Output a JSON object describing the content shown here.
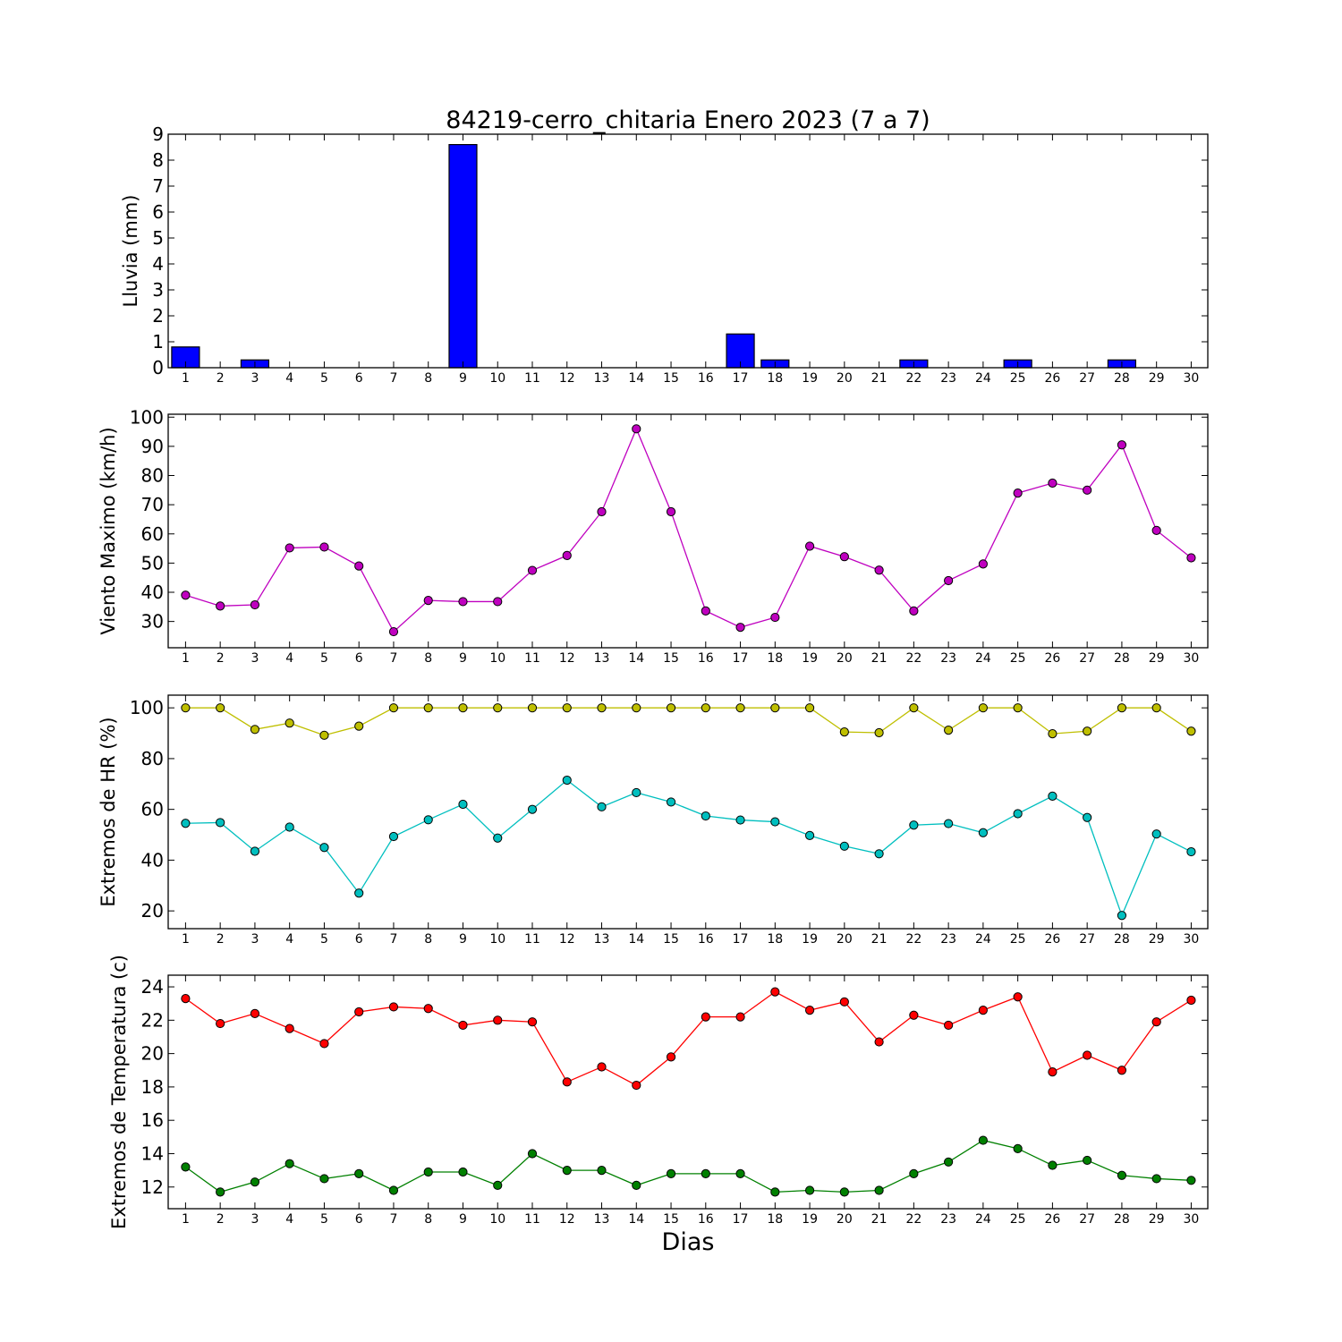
{
  "chart_data": [
    {
      "type": "bar",
      "title": "84219-cerro_chitaria Enero 2023  (7 a 7)",
      "ylabel": "Lluvia (mm)",
      "xlabel": "",
      "categories": [
        "1",
        "2",
        "3",
        "4",
        "5",
        "6",
        "7",
        "8",
        "9",
        "10",
        "11",
        "12",
        "13",
        "14",
        "15",
        "16",
        "17",
        "18",
        "19",
        "20",
        "21",
        "22",
        "23",
        "24",
        "25",
        "26",
        "27",
        "28",
        "29",
        "30"
      ],
      "values": [
        0.8,
        0,
        0.3,
        0,
        0,
        0,
        0,
        0,
        8.6,
        0,
        0,
        0,
        0,
        0,
        0,
        0,
        1.3,
        0.3,
        0,
        0,
        0,
        0.3,
        0,
        0,
        0.3,
        0,
        0,
        0.3,
        0,
        0
      ],
      "ylim": [
        0,
        9
      ],
      "yticks": [
        0,
        1,
        2,
        3,
        4,
        5,
        6,
        7,
        8,
        9
      ],
      "color": "#0000ff",
      "grid": false
    },
    {
      "type": "line",
      "title": "",
      "ylabel": "Viento Maximo (km/h)",
      "xlabel": "",
      "categories": [
        "1",
        "2",
        "3",
        "4",
        "5",
        "6",
        "7",
        "8",
        "9",
        "10",
        "11",
        "12",
        "13",
        "14",
        "15",
        "16",
        "17",
        "18",
        "19",
        "20",
        "21",
        "22",
        "23",
        "24",
        "25",
        "26",
        "27",
        "28",
        "29",
        "30"
      ],
      "series": [
        {
          "values": [
            39,
            35.3,
            35.7,
            55.2,
            55.5,
            49,
            26.5,
            37.2,
            36.8,
            36.8,
            47.5,
            52.6,
            67.6,
            96,
            67.6,
            33.6,
            28,
            31.4,
            55.8,
            52.2,
            47.6,
            33.6,
            44,
            49.7,
            74,
            77.4,
            75,
            90.5,
            61.2,
            51.8
          ],
          "color": "#bf00bf"
        }
      ],
      "ylim": [
        21,
        101
      ],
      "yticks": [
        30,
        40,
        50,
        60,
        70,
        80,
        90,
        100
      ],
      "grid": false
    },
    {
      "type": "line",
      "title": "",
      "ylabel": "Extremos de HR (%)",
      "xlabel": "",
      "categories": [
        "1",
        "2",
        "3",
        "4",
        "5",
        "6",
        "7",
        "8",
        "9",
        "10",
        "11",
        "12",
        "13",
        "14",
        "15",
        "16",
        "17",
        "18",
        "19",
        "20",
        "21",
        "22",
        "23",
        "24",
        "25",
        "26",
        "27",
        "28",
        "29",
        "30"
      ],
      "series": [
        {
          "values": [
            100,
            100,
            91.5,
            94,
            89.2,
            92.8,
            100,
            100,
            100,
            100,
            100,
            100,
            100,
            100,
            100,
            100,
            100,
            100,
            100,
            90.5,
            90.2,
            100,
            91.2,
            100,
            100,
            89.8,
            90.8,
            100,
            100,
            90.8
          ],
          "color": "#bfbf00"
        },
        {
          "values": [
            54.5,
            54.8,
            43.5,
            53,
            45,
            27,
            49.3,
            55.9,
            62,
            48.7,
            60,
            71.5,
            61,
            66.6,
            62.9,
            57.4,
            55.8,
            55.1,
            49.7,
            45.5,
            42.5,
            53.8,
            54.4,
            50.8,
            58.3,
            65.2,
            56.8,
            18.2,
            50.3,
            43.3
          ],
          "color": "#00bfbf"
        }
      ],
      "ylim": [
        13,
        105
      ],
      "yticks": [
        20,
        40,
        60,
        80,
        100
      ],
      "grid": false
    },
    {
      "type": "line",
      "title": "",
      "ylabel": "Extremos de Temperatura (c)",
      "xlabel": "Dias",
      "categories": [
        "1",
        "2",
        "3",
        "4",
        "5",
        "6",
        "7",
        "8",
        "9",
        "10",
        "11",
        "12",
        "13",
        "14",
        "15",
        "16",
        "17",
        "18",
        "19",
        "20",
        "21",
        "22",
        "23",
        "24",
        "25",
        "26",
        "27",
        "28",
        "29",
        "30"
      ],
      "series": [
        {
          "values": [
            23.3,
            21.8,
            22.4,
            21.5,
            20.6,
            22.5,
            22.8,
            22.7,
            21.7,
            22,
            21.9,
            18.3,
            19.2,
            18.1,
            19.8,
            22.2,
            22.2,
            23.7,
            22.6,
            23.1,
            20.7,
            22.3,
            21.7,
            22.6,
            23.4,
            18.9,
            19.9,
            19,
            21.9,
            23.2
          ],
          "color": "#ff0000"
        },
        {
          "values": [
            13.2,
            11.7,
            12.3,
            13.4,
            12.5,
            12.8,
            11.8,
            12.9,
            12.9,
            12.1,
            14,
            13,
            13,
            12.1,
            12.8,
            12.8,
            12.8,
            11.7,
            11.8,
            11.7,
            11.8,
            12.8,
            13.5,
            14.8,
            14.3,
            13.3,
            13.6,
            12.7,
            12.5,
            12.4
          ],
          "color": "#008000"
        }
      ],
      "ylim": [
        10.7,
        24.7
      ],
      "yticks": [
        12,
        14,
        16,
        18,
        20,
        22,
        24
      ],
      "grid": false
    }
  ]
}
